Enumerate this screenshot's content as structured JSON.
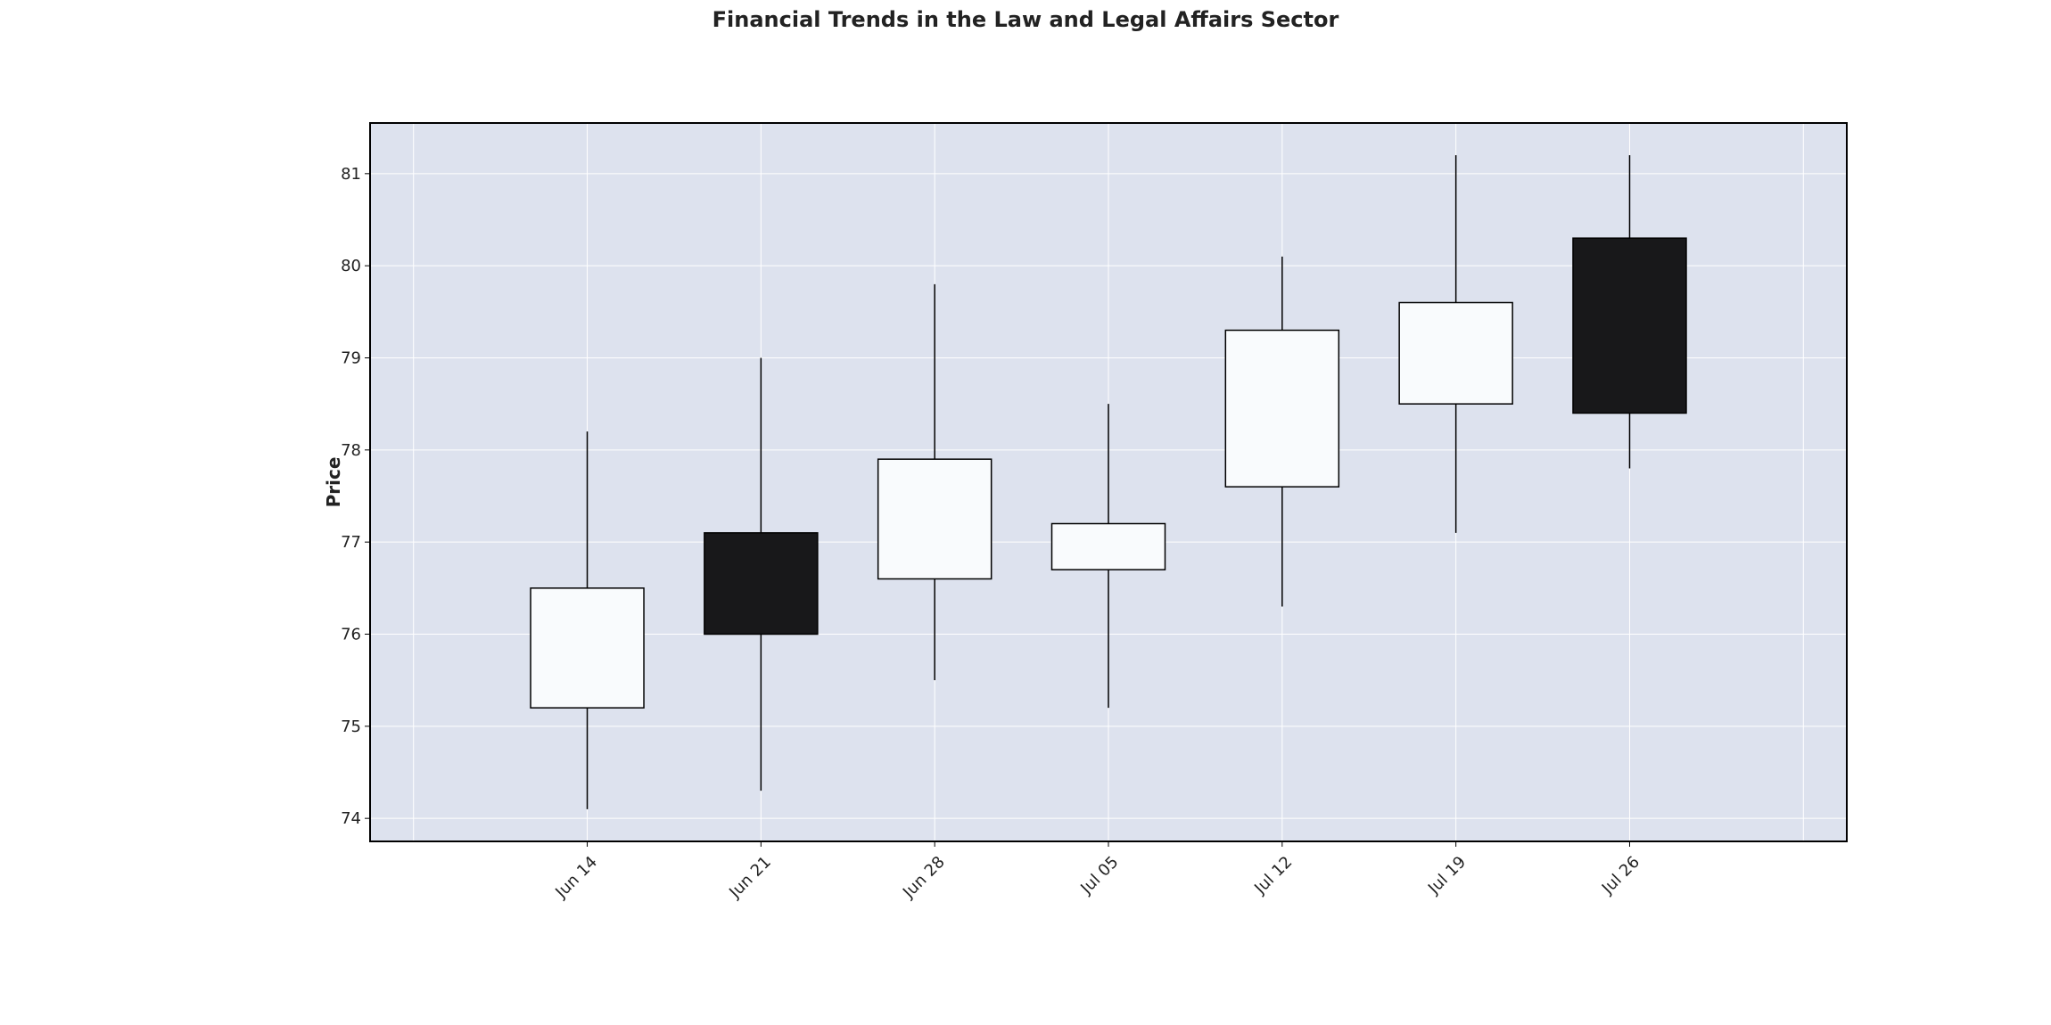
{
  "chart_data": {
    "type": "candlestick",
    "title": "Financial Trends in the Law and Legal Affairs Sector",
    "xlabel": "",
    "ylabel": "Price",
    "categories": [
      "Jun 14",
      "Jun 21",
      "Jun 28",
      "Jul 05",
      "Jul 12",
      "Jul 19",
      "Jul 26"
    ],
    "open": [
      75.2,
      77.1,
      76.6,
      76.7,
      77.6,
      78.5,
      80.3
    ],
    "high": [
      78.2,
      79.0,
      79.8,
      78.5,
      80.1,
      81.2,
      81.2
    ],
    "low": [
      74.1,
      74.3,
      75.5,
      75.2,
      76.3,
      77.1,
      77.8
    ],
    "close": [
      76.5,
      76.0,
      77.9,
      77.2,
      79.3,
      79.6,
      78.4
    ],
    "yticks": [
      74,
      75,
      76,
      77,
      78,
      79,
      80,
      81
    ],
    "ylim": [
      73.75,
      81.55
    ],
    "xlim": [
      "Jun 07",
      "Aug 02"
    ],
    "grid": true,
    "colors": {
      "background": "#dde2ee",
      "up": "#f9fbfd",
      "down": "#18181a",
      "edge": "#000000",
      "wick": "#000000",
      "grid": "#ffffff"
    }
  }
}
